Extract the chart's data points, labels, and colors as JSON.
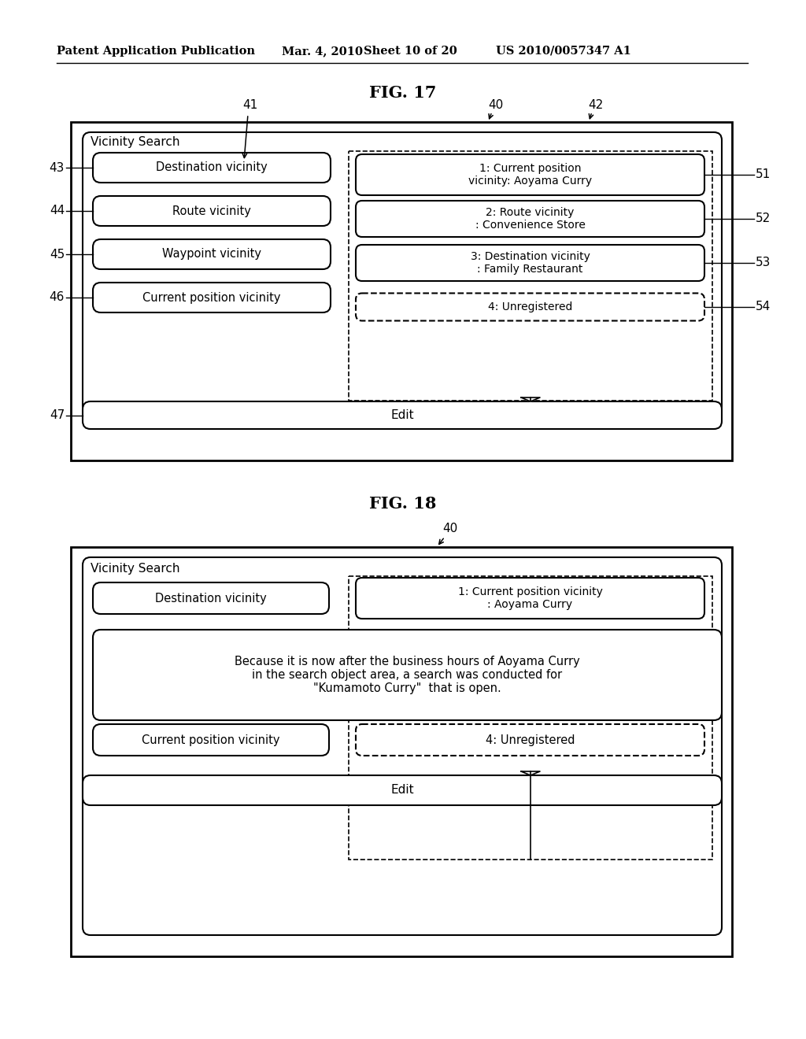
{
  "bg_color": "#ffffff",
  "header_text": "Patent Application Publication",
  "header_date": "Mar. 4, 2010",
  "header_sheet": "Sheet 10 of 20",
  "header_patent": "US 2010/0057347 A1",
  "fig17_title": "FIG. 17",
  "fig18_title": "FIG. 18",
  "fig17": {
    "title": "Vicinity Search",
    "left_buttons": [
      {
        "label": "43",
        "text": "Destination vicinity"
      },
      {
        "label": "44",
        "text": "Route vicinity"
      },
      {
        "label": "45",
        "text": "Waypoint vicinity"
      },
      {
        "label": "46",
        "text": "Current position vicinity"
      }
    ],
    "right_items": [
      {
        "label": "51",
        "text": "1: Current position\nvicinity: Aoyama Curry",
        "dashed": false
      },
      {
        "label": "52",
        "text": "2: Route vicinity\n: Convenience Store",
        "dashed": false
      },
      {
        "label": "53",
        "text": "3: Destination vicinity\n: Family Restaurant",
        "dashed": false
      },
      {
        "label": "54",
        "text": "4: Unregistered",
        "dashed": true
      }
    ],
    "edit_label": "47",
    "edit_text": "Edit"
  },
  "fig18": {
    "title": "Vicinity Search",
    "top_left_button": "Destination vicinity",
    "top_right_item": "1: Current position vicinity\n: Aoyama Curry",
    "message_text": "Because it is now after the business hours of Aoyama Curry\nin the search object area, a search was conducted for\n\"Kumamoto Curry\"  that is open.",
    "bottom_left_button": "Current position vicinity",
    "bottom_right_item": "4: Unregistered",
    "edit_text": "Edit"
  }
}
